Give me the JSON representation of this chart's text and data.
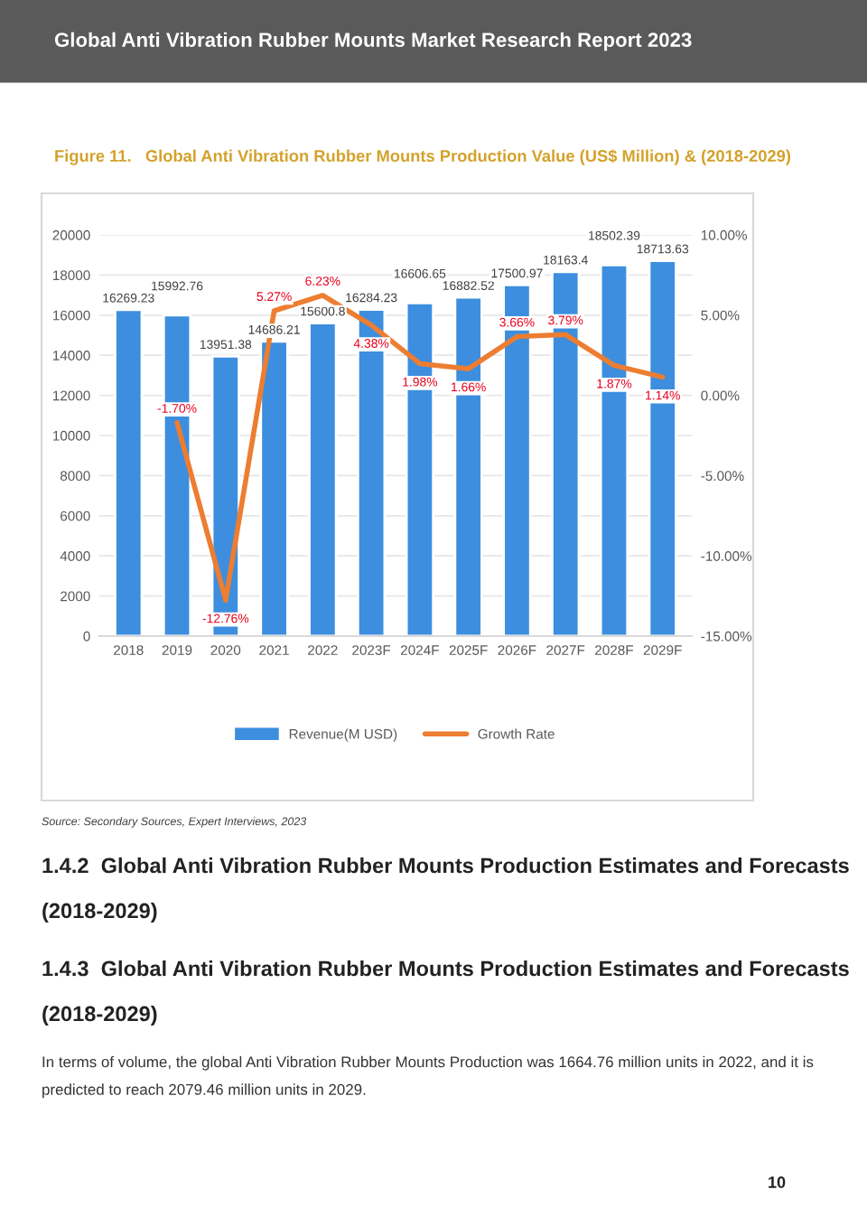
{
  "chart_data": {
    "type": "bar",
    "title": "Figure 11.   Global Anti Vibration Rubber Mounts Production Value (US$ Million) & (2018-2029)",
    "categories": [
      "2018",
      "2019",
      "2020",
      "2021",
      "2022",
      "2023F",
      "2024F",
      "2025F",
      "2026F",
      "2027F",
      "2028F",
      "2029F"
    ],
    "series": [
      {
        "name": "Revenue(M USD)",
        "type": "bar",
        "color": "#3d8ede",
        "values": [
          16269.23,
          15992.76,
          13951.38,
          14686.21,
          15600.8,
          16284.23,
          16606.65,
          16882.52,
          17500.97,
          18163.4,
          18502.39,
          18713.63
        ],
        "value_labels": [
          "16269.23",
          "15992.76",
          "13951.38",
          "14686.21",
          "15600.8",
          "16284.23",
          "16606.65",
          "16882.52",
          "17500.97",
          "18163.4",
          "18502.39",
          "18713.63"
        ]
      },
      {
        "name": "Growth Rate",
        "type": "line",
        "axis": "y2",
        "color": "#ed7d31",
        "values": [
          null,
          -1.7,
          -12.76,
          5.27,
          6.23,
          4.38,
          1.98,
          1.66,
          3.66,
          3.79,
          1.87,
          1.14
        ],
        "value_labels": [
          null,
          "-1.70%",
          "-12.76%",
          "5.27%",
          "6.23%",
          "4.38%",
          "1.98%",
          "1.66%",
          "3.66%",
          "3.79%",
          "1.87%",
          "1.14%"
        ]
      }
    ],
    "ylim": [
      0,
      20000
    ],
    "yticks": [
      0,
      2000,
      4000,
      6000,
      8000,
      10000,
      12000,
      14000,
      16000,
      18000,
      20000
    ],
    "y2lim": [
      -15,
      10
    ],
    "y2ticks": [
      {
        "value": -15,
        "label": "-15.00%"
      },
      {
        "value": -10,
        "label": "-10.00%"
      },
      {
        "value": -5,
        "label": "-5.00%"
      },
      {
        "value": 0,
        "label": "0.00%"
      },
      {
        "value": 5,
        "label": "5.00%"
      },
      {
        "value": 10,
        "label": "10.00%"
      }
    ],
    "grid": "y",
    "legend": "bottom",
    "marker": "none",
    "line_style": "solid",
    "annotations": [
      "Global Anti Vibration Rubber Mounts Market Research Report 2023",
      "Source: Secondary Sources, Expert Interviews, 2023",
      "1.4.2  Global Anti Vibration Rubber Mounts Production Estimates and Forecasts",
      "(2018-2029)",
      "1.4.3  Global Anti Vibration Rubber Mounts Production Estimates and Forecasts",
      "(2018-2029)",
      "In terms of volume, the global Anti Vibration Rubber Mounts Production was 1664.76 million units in 2022, and it is predicted to reach 2079.46 million units in 2029.",
      "10"
    ]
  }
}
